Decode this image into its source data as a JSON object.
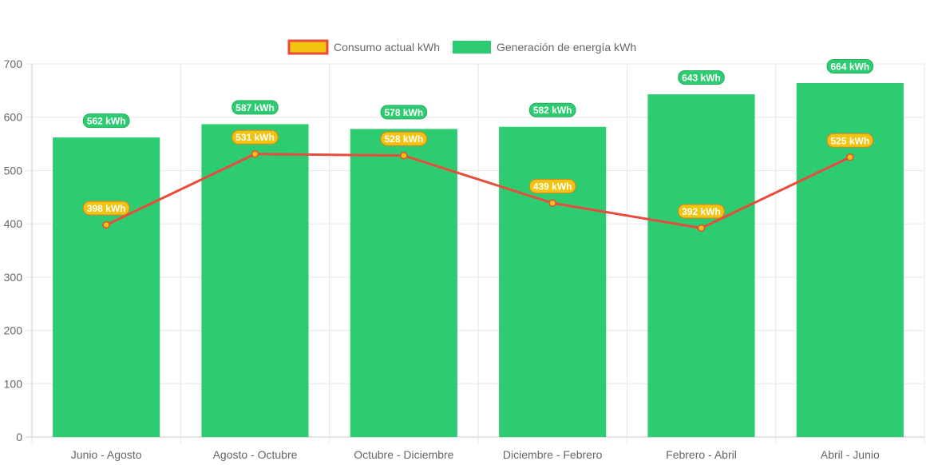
{
  "chart_data": {
    "type": "bar",
    "categories": [
      "Junio - Agosto",
      "Agosto - Octubre",
      "Octubre - Diciembre",
      "Diciembre - Febrero",
      "Febrero - Abril",
      "Abril - Junio"
    ],
    "series": [
      {
        "name": "Generación de energía kWh",
        "type": "bar",
        "values": [
          562,
          587,
          578,
          582,
          643,
          664
        ],
        "labels": [
          "562 kWh",
          "587 kWh",
          "578 kWh",
          "582 kWh",
          "643 kWh",
          "664 kWh"
        ],
        "color": "#2ecc71",
        "label_border": "#27ae60"
      },
      {
        "name": "Consumo actual kWh",
        "type": "line",
        "values": [
          398,
          531,
          528,
          439,
          392,
          525
        ],
        "labels": [
          "398 kWh",
          "531 kWh",
          "528 kWh",
          "439 kWh",
          "392 kWh",
          "525 kWh"
        ],
        "color": "#f1c40f",
        "line_color": "#e74c3c",
        "label_border": "#e67e22"
      }
    ],
    "ylim": [
      0,
      700
    ],
    "yticks": [
      "0",
      "100",
      "200",
      "300",
      "400",
      "500",
      "600",
      "700"
    ],
    "grid": true,
    "legend": "top-center",
    "title": "",
    "xlabel": "",
    "ylabel": ""
  }
}
